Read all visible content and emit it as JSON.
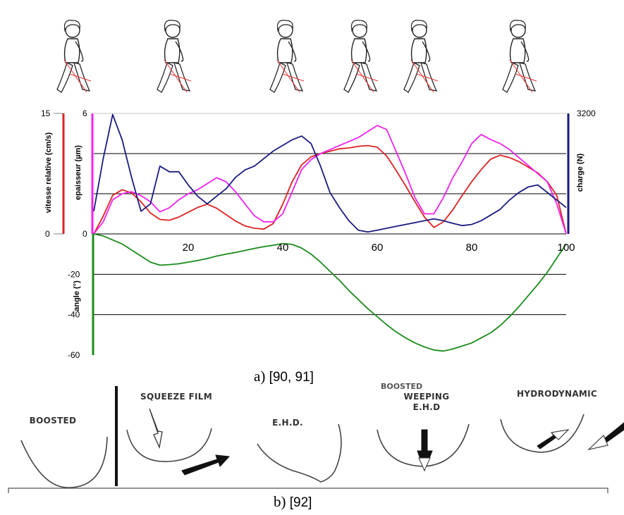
{
  "chart_data": {
    "type": "line",
    "x": [
      0,
      2,
      4,
      6,
      8,
      10,
      12,
      14,
      16,
      18,
      20,
      22,
      24,
      26,
      28,
      30,
      32,
      34,
      36,
      38,
      40,
      42,
      44,
      46,
      48,
      50,
      52,
      54,
      56,
      58,
      60,
      62,
      64,
      66,
      68,
      70,
      72,
      74,
      76,
      78,
      80,
      82,
      84,
      86,
      88,
      90,
      92,
      94,
      96,
      98,
      100
    ],
    "xlim": [
      0,
      100
    ],
    "x_ticks": [
      "20",
      "40",
      "60",
      "80",
      "100"
    ],
    "upper_axes": {
      "left_outer": {
        "label": "vitesse relative (cm/s)",
        "ticks": [
          "15",
          "0"
        ],
        "color": "#dd2222",
        "ylim": [
          0,
          15
        ]
      },
      "left_inner": {
        "label": "epaisseur (µm)",
        "ticks": [
          "6",
          "0"
        ],
        "color": "#ee22ee",
        "ylim": [
          0,
          6
        ]
      },
      "right": {
        "label": "charge (N)",
        "ticks": [
          "3200"
        ],
        "color": "#1a1a80",
        "ylim": [
          0,
          3200
        ]
      }
    },
    "lower_axis": {
      "label": "angle (°)",
      "ticks": [
        "0",
        "-20",
        "-40",
        "-60"
      ],
      "color": "#1a8c1a",
      "ylim": [
        -60,
        0
      ]
    },
    "series": [
      {
        "color": "#dd2222",
        "axis": "left_outer",
        "values": [
          0,
          2.2,
          4.8,
          5.5,
          5.1,
          4.0,
          2.6,
          1.8,
          1.7,
          2.1,
          2.7,
          3.3,
          3.7,
          3.2,
          2.4,
          1.6,
          1.0,
          0.7,
          0.6,
          1.3,
          3.7,
          6.5,
          8.6,
          9.6,
          10.0,
          10.3,
          10.6,
          10.7,
          10.9,
          11.0,
          10.8,
          9.7,
          7.9,
          6.0,
          4.0,
          2.1,
          0.8,
          1.5,
          3.0,
          4.8,
          6.5,
          8.0,
          9.3,
          9.8,
          9.5,
          9.0,
          8.3,
          7.6,
          6.5,
          4.8,
          0
        ]
      },
      {
        "color": "#ee22ee",
        "axis": "left_inner",
        "values": [
          0,
          0.6,
          1.7,
          2.0,
          2.1,
          1.9,
          1.6,
          1.1,
          1.3,
          1.7,
          2.0,
          2.2,
          2.5,
          2.8,
          2.6,
          2.1,
          1.5,
          0.9,
          0.6,
          0.6,
          1.0,
          2.1,
          3.2,
          3.7,
          4.0,
          4.2,
          4.4,
          4.6,
          4.8,
          5.1,
          5.4,
          5.2,
          4.1,
          3.0,
          1.8,
          1.0,
          1.0,
          1.8,
          2.8,
          3.6,
          4.5,
          4.95,
          4.7,
          4.5,
          4.2,
          3.8,
          3.4,
          3.0,
          2.6,
          1.5,
          0
        ]
      },
      {
        "color": "#1a1a80",
        "axis": "right",
        "values": [
          600,
          2000,
          3170,
          2500,
          1500,
          600,
          800,
          1800,
          1650,
          1650,
          1300,
          1000,
          800,
          1000,
          1200,
          1500,
          1700,
          1800,
          2000,
          2200,
          2350,
          2500,
          2600,
          2400,
          1800,
          1100,
          700,
          350,
          100,
          50,
          100,
          150,
          200,
          250,
          300,
          350,
          400,
          350,
          280,
          220,
          250,
          350,
          500,
          650,
          900,
          1100,
          1250,
          1300,
          1100,
          900,
          700
        ]
      },
      {
        "color": "#1a8c1a",
        "axis": "lower",
        "values": [
          0,
          -1,
          -3,
          -5,
          -8,
          -11,
          -14,
          -15.5,
          -15.2,
          -14.8,
          -14,
          -13.2,
          -12.2,
          -11,
          -10,
          -9.2,
          -8.2,
          -7.2,
          -6.3,
          -5.6,
          -4.8,
          -5.2,
          -7,
          -10,
          -14,
          -18.5,
          -23,
          -28,
          -32.5,
          -37,
          -41,
          -45,
          -48.5,
          -51.5,
          -54,
          -56,
          -57.5,
          -58,
          -57,
          -55.5,
          -54,
          -51.5,
          -49,
          -45.5,
          -41,
          -36,
          -30.5,
          -25,
          -19,
          -12,
          -5
        ]
      }
    ],
    "grid": true
  },
  "captions": {
    "a": {
      "letter": "a) ",
      "refs": "[90, 91]"
    },
    "b": {
      "letter": "b) ",
      "refs": "[92]"
    }
  },
  "regimes": {
    "labels": [
      "BOOSTED",
      "SQUEEZE FILM",
      "E.H.D.",
      "WEEPING E.H.D",
      "HYDRODYNAMIC"
    ],
    "partial_top_label": "BOOSTED"
  }
}
